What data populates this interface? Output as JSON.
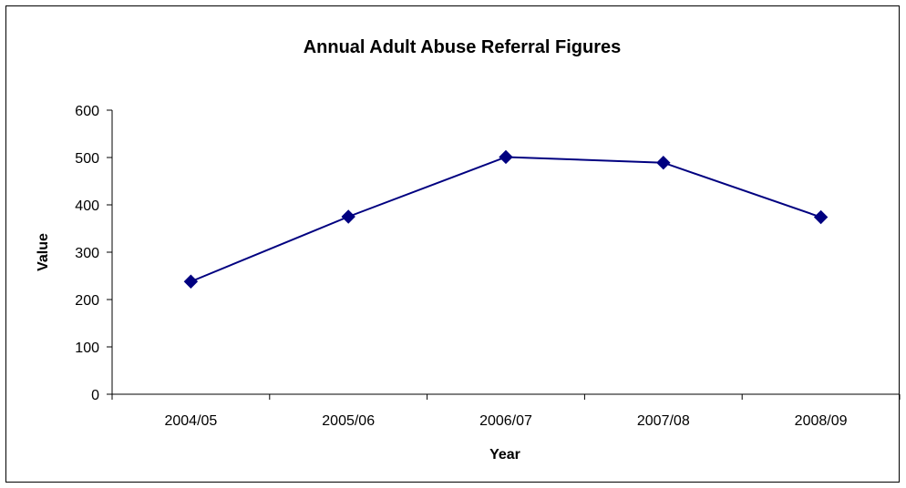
{
  "chart_data": {
    "type": "line",
    "title": "Annual Adult Abuse Referral Figures",
    "xlabel": "Year",
    "ylabel": "Value",
    "categories": [
      "2004/05",
      "2005/06",
      "2006/07",
      "2007/08",
      "2008/09"
    ],
    "series": [
      {
        "values": [
          238,
          375,
          501,
          489,
          374
        ],
        "color": "#000080",
        "marker": "diamond"
      }
    ],
    "ylim": [
      0,
      600
    ],
    "yticks": [
      0,
      100,
      200,
      300,
      400,
      500,
      600
    ],
    "grid": false,
    "legend": "none"
  }
}
